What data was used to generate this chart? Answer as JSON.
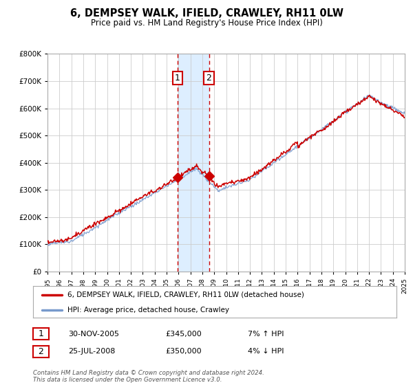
{
  "title": "6, DEMPSEY WALK, IFIELD, CRAWLEY, RH11 0LW",
  "subtitle": "Price paid vs. HM Land Registry's House Price Index (HPI)",
  "legend_entries": [
    "6, DEMPSEY WALK, IFIELD, CRAWLEY, RH11 0LW (detached house)",
    "HPI: Average price, detached house, Crawley"
  ],
  "legend_colors": [
    "#cc0000",
    "#7799cc"
  ],
  "sale1_date": "30-NOV-2005",
  "sale1_price": "£345,000",
  "sale1_hpi": "7% ↑ HPI",
  "sale1_year": 2005.917,
  "sale1_value": 345000,
  "sale2_date": "25-JUL-2008",
  "sale2_price": "£350,000",
  "sale2_hpi": "4% ↓ HPI",
  "sale2_year": 2008.556,
  "sale2_value": 350000,
  "xmin": 1995,
  "xmax": 2025,
  "ymin": 0,
  "ymax": 800000,
  "yticks": [
    0,
    100000,
    200000,
    300000,
    400000,
    500000,
    600000,
    700000,
    800000
  ],
  "background_color": "#ffffff",
  "plot_bg_color": "#ffffff",
  "grid_color": "#cccccc",
  "shade_color": "#ddeeff",
  "dashed_line_color": "#cc0000",
  "footnote": "Contains HM Land Registry data © Crown copyright and database right 2024.\nThis data is licensed under the Open Government Licence v3.0."
}
